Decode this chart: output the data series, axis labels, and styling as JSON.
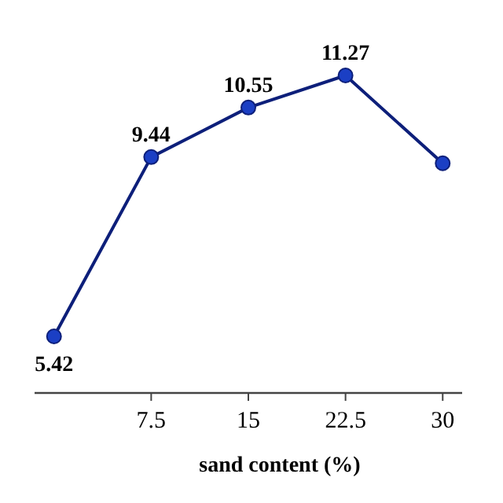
{
  "chart_data": {
    "type": "line",
    "xlabel": "sand content (%)",
    "x": [
      0,
      7.5,
      15,
      22.5,
      30
    ],
    "xlim": [
      -1.5,
      31.5
    ],
    "xticks": [
      7.5,
      15,
      22.5,
      30
    ],
    "series": [
      {
        "color": "#0d1f7a",
        "values": [
          5.42,
          9.44,
          10.55,
          11.27,
          9.3
        ],
        "value_labels": [
          "5.42",
          "9.44",
          "10.55",
          "11.27",
          null
        ]
      }
    ],
    "marker": "circle",
    "line_style": "solid"
  }
}
